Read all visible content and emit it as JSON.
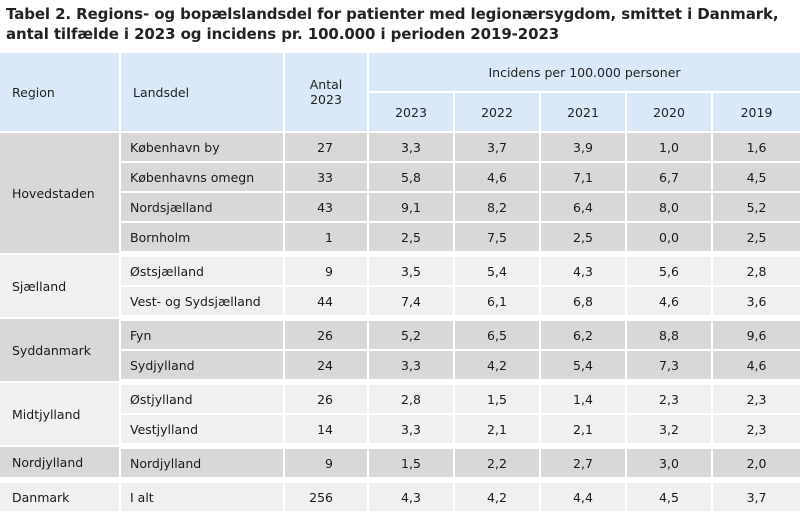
{
  "title": "Tabel 2. Regions- og bopælslandsdel for patienter med legionærsygdom, smittet i Danmark, antal tilfælde i 2023 og incidens pr. 100.000 i perioden 2019-2023",
  "headers": {
    "region": "Region",
    "landsdel": "Landsdel",
    "antal_line1": "Antal",
    "antal_line2": "2023",
    "incidens": "Incidens per 100.000 personer",
    "years": [
      "2023",
      "2022",
      "2021",
      "2020",
      "2019"
    ]
  },
  "groups": [
    {
      "region": "Hovedstaden",
      "rows": [
        {
          "landsdel": "København by",
          "antal": "27",
          "values": [
            "3,3",
            "3,7",
            "3,9",
            "1,0",
            "1,6"
          ]
        },
        {
          "landsdel": "Københavns omegn",
          "antal": "33",
          "values": [
            "5,8",
            "4,6",
            "7,1",
            "6,7",
            "4,5"
          ]
        },
        {
          "landsdel": "Nordsjælland",
          "antal": "43",
          "values": [
            "9,1",
            "8,2",
            "6,4",
            "8,0",
            "5,2"
          ]
        },
        {
          "landsdel": "Bornholm",
          "antal": "1",
          "values": [
            "2,5",
            "7,5",
            "2,5",
            "0,0",
            "2,5"
          ]
        }
      ]
    },
    {
      "region": "Sjælland",
      "rows": [
        {
          "landsdel": "Østsjælland",
          "antal": "9",
          "values": [
            "3,5",
            "5,4",
            "4,3",
            "5,6",
            "2,8"
          ]
        },
        {
          "landsdel": "Vest- og Sydsjælland",
          "antal": "44",
          "values": [
            "7,4",
            "6,1",
            "6,8",
            "4,6",
            "3,6"
          ]
        }
      ]
    },
    {
      "region": "Syddanmark",
      "rows": [
        {
          "landsdel": "Fyn",
          "antal": "26",
          "values": [
            "5,2",
            "6,5",
            "6,2",
            "8,8",
            "9,6"
          ]
        },
        {
          "landsdel": "Sydjylland",
          "antal": "24",
          "values": [
            "3,3",
            "4,2",
            "5,4",
            "7,3",
            "4,6"
          ]
        }
      ]
    },
    {
      "region": "Midtjylland",
      "rows": [
        {
          "landsdel": "Østjylland",
          "antal": "26",
          "values": [
            "2,8",
            "1,5",
            "1,4",
            "2,3",
            "2,3"
          ]
        },
        {
          "landsdel": "Vestjylland",
          "antal": "14",
          "values": [
            "3,3",
            "2,1",
            "2,1",
            "3,2",
            "2,3"
          ]
        }
      ]
    },
    {
      "region": "Nordjylland",
      "rows": [
        {
          "landsdel": "Nordjylland",
          "antal": "9",
          "values": [
            "1,5",
            "2,2",
            "2,7",
            "3,0",
            "2,0"
          ]
        }
      ]
    },
    {
      "region": "Danmark",
      "rows": [
        {
          "landsdel": "I alt",
          "antal": "256",
          "values": [
            "4,3",
            "4,2",
            "4,4",
            "4,5",
            "3,7"
          ]
        }
      ]
    }
  ]
}
